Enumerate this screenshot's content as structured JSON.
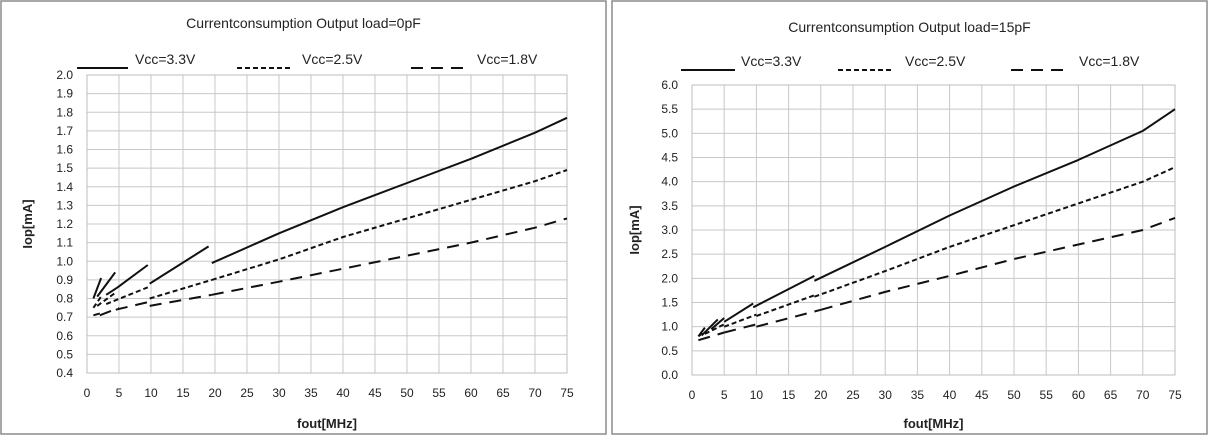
{
  "chart_data": [
    {
      "type": "line",
      "title": "Currentconsumption  Output load=0pF",
      "xlabel": "fout[MHz]",
      "ylabel": "Iop[mA]",
      "xlim": [
        0,
        75
      ],
      "ylim": [
        0.4,
        2.0
      ],
      "x_ticks": [
        "0",
        "5",
        "10",
        "15",
        "20",
        "25",
        "30",
        "35",
        "40",
        "45",
        "50",
        "55",
        "60",
        "65",
        "70",
        "75"
      ],
      "y_ticks": [
        "0.4",
        "0.5",
        "0.6",
        "0.7",
        "0.8",
        "0.9",
        "1.0",
        "1.1",
        "1.2",
        "1.3",
        "1.4",
        "1.5",
        "1.6",
        "1.7",
        "1.8",
        "1.9",
        "2.0"
      ],
      "legend_position": "top",
      "series": [
        {
          "name": "Vcc=3.3V",
          "style": "solid",
          "segments": [
            [
              [
                1,
                0.8
              ],
              [
                2.2,
                0.91
              ]
            ],
            [
              [
                1.6,
                0.81
              ],
              [
                4.4,
                0.94
              ]
            ],
            [
              [
                3,
                0.82
              ],
              [
                4.8,
                0.86
              ],
              [
                9.5,
                0.98
              ]
            ],
            [
              [
                9.8,
                0.88
              ],
              [
                19,
                1.08
              ]
            ],
            [
              [
                19.5,
                0.99
              ],
              [
                30,
                1.15
              ],
              [
                40,
                1.29
              ],
              [
                50,
                1.42
              ],
              [
                60,
                1.55
              ],
              [
                70,
                1.69
              ],
              [
                75,
                1.77
              ]
            ]
          ]
        },
        {
          "name": "Vcc=2.5V",
          "style": "dashed",
          "segments": [
            [
              [
                1,
                0.75
              ],
              [
                2.2,
                0.81
              ]
            ],
            [
              [
                1.6,
                0.76
              ],
              [
                4.4,
                0.83
              ]
            ],
            [
              [
                3,
                0.77
              ],
              [
                9.5,
                0.86
              ]
            ],
            [
              [
                9.8,
                0.8
              ],
              [
                19.5,
                0.9
              ]
            ],
            [
              [
                19.5,
                0.9
              ],
              [
                30,
                1.01
              ],
              [
                40,
                1.13
              ],
              [
                50,
                1.23
              ],
              [
                60,
                1.33
              ],
              [
                70,
                1.43
              ],
              [
                75,
                1.49
              ]
            ]
          ]
        },
        {
          "name": "Vcc=1.8V",
          "style": "longdash",
          "segments": [
            [
              [
                1,
                0.71
              ],
              [
                2,
                0.72
              ]
            ],
            [
              [
                2,
                0.71
              ],
              [
                5,
                0.75
              ]
            ],
            [
              [
                4.5,
                0.74
              ],
              [
                9.5,
                0.78
              ]
            ],
            [
              [
                9.8,
                0.76
              ],
              [
                19.5,
                0.82
              ]
            ],
            [
              [
                19.5,
                0.82
              ],
              [
                30,
                0.89
              ],
              [
                40,
                0.96
              ],
              [
                50,
                1.03
              ],
              [
                60,
                1.1
              ],
              [
                70,
                1.18
              ],
              [
                75,
                1.23
              ]
            ]
          ]
        }
      ]
    },
    {
      "type": "line",
      "title": "Currentconsumption  Output load=15pF",
      "xlabel": "fout[MHz]",
      "ylabel": "Iop[mA]",
      "xlim": [
        0,
        75
      ],
      "ylim": [
        0.0,
        6.0
      ],
      "x_ticks": [
        "0",
        "5",
        "10",
        "15",
        "20",
        "25",
        "30",
        "35",
        "40",
        "45",
        "50",
        "55",
        "60",
        "65",
        "70",
        "75"
      ],
      "y_ticks": [
        "0.0",
        "0.5",
        "1.0",
        "1.5",
        "2.0",
        "2.5",
        "3.0",
        "3.5",
        "4.0",
        "4.5",
        "5.0",
        "5.5",
        "6.0"
      ],
      "legend_position": "top",
      "series": [
        {
          "name": "Vcc=3.3V",
          "style": "solid",
          "segments": [
            [
              [
                1,
                0.8
              ],
              [
                2,
                0.98
              ]
            ],
            [
              [
                1.5,
                0.82
              ],
              [
                4,
                1.15
              ]
            ],
            [
              [
                3,
                0.95
              ],
              [
                5,
                1.18
              ]
            ],
            [
              [
                5,
                1.1
              ],
              [
                9.5,
                1.48
              ]
            ],
            [
              [
                9.5,
                1.4
              ],
              [
                19,
                2.05
              ]
            ],
            [
              [
                19,
                1.95
              ],
              [
                30,
                2.65
              ],
              [
                40,
                3.3
              ],
              [
                50,
                3.9
              ],
              [
                60,
                4.45
              ],
              [
                70,
                5.05
              ],
              [
                75,
                5.5
              ]
            ]
          ]
        },
        {
          "name": "Vcc=2.5V",
          "style": "dashed",
          "segments": [
            [
              [
                1,
                0.8
              ],
              [
                2,
                0.9
              ]
            ],
            [
              [
                2,
                0.85
              ],
              [
                5,
                1.05
              ]
            ],
            [
              [
                5,
                1.0
              ],
              [
                10,
                1.25
              ]
            ],
            [
              [
                10,
                1.22
              ],
              [
                19,
                1.65
              ]
            ],
            [
              [
                19,
                1.62
              ],
              [
                30,
                2.15
              ],
              [
                40,
                2.65
              ],
              [
                50,
                3.1
              ],
              [
                60,
                3.55
              ],
              [
                70,
                4.0
              ],
              [
                75,
                4.3
              ]
            ]
          ]
        },
        {
          "name": "Vcc=1.8V",
          "style": "longdash",
          "segments": [
            [
              [
                1,
                0.72
              ],
              [
                5,
                0.88
              ]
            ],
            [
              [
                5,
                0.88
              ],
              [
                10,
                1.05
              ]
            ],
            [
              [
                10,
                1.0
              ],
              [
                20,
                1.35
              ]
            ],
            [
              [
                20,
                1.35
              ],
              [
                30,
                1.72
              ],
              [
                40,
                2.05
              ],
              [
                50,
                2.4
              ],
              [
                60,
                2.7
              ],
              [
                70,
                3.0
              ],
              [
                75,
                3.25
              ]
            ]
          ]
        }
      ]
    }
  ]
}
